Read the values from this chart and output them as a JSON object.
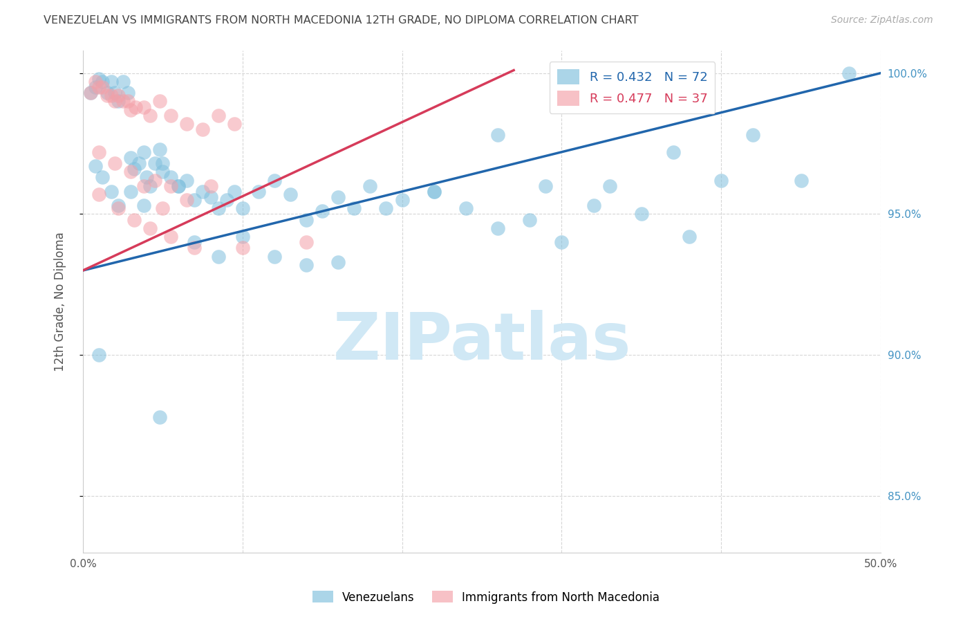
{
  "title": "VENEZUELAN VS IMMIGRANTS FROM NORTH MACEDONIA 12TH GRADE, NO DIPLOMA CORRELATION CHART",
  "source": "Source: ZipAtlas.com",
  "ylabel": "12th Grade, No Diploma",
  "x_min": 0.0,
  "x_max": 0.5,
  "y_min": 0.83,
  "y_max": 1.008,
  "x_ticks": [
    0.0,
    0.1,
    0.2,
    0.3,
    0.4,
    0.5
  ],
  "x_tick_labels": [
    "0.0%",
    "",
    "",
    "",
    "",
    "50.0%"
  ],
  "y_ticks": [
    0.85,
    0.9,
    0.95,
    1.0
  ],
  "y_tick_labels": [
    "85.0%",
    "90.0%",
    "95.0%",
    "100.0%"
  ],
  "blue_color": "#7fbfdd",
  "pink_color": "#f4a0a8",
  "blue_line_color": "#2166ac",
  "pink_line_color": "#d63b5a",
  "legend_blue_R": "0.432",
  "legend_blue_N": "72",
  "legend_pink_R": "0.477",
  "legend_pink_N": "37",
  "watermark": "ZIPatlas",
  "watermark_color": "#d0e8f5",
  "grid_color": "#cccccc",
  "title_color": "#444444",
  "axis_label_color": "#555555",
  "right_tick_color": "#4393c3",
  "blue_line_x0": 0.0,
  "blue_line_y0": 0.93,
  "blue_line_x1": 0.5,
  "blue_line_y1": 1.0,
  "pink_line_x0": 0.0,
  "pink_line_y0": 0.93,
  "pink_line_x1": 0.27,
  "pink_line_y1": 1.001,
  "venezuelan_x": [
    0.005,
    0.008,
    0.01,
    0.012,
    0.015,
    0.018,
    0.02,
    0.022,
    0.025,
    0.028,
    0.03,
    0.032,
    0.035,
    0.038,
    0.04,
    0.042,
    0.045,
    0.048,
    0.05,
    0.055,
    0.06,
    0.065,
    0.07,
    0.075,
    0.08,
    0.085,
    0.09,
    0.095,
    0.1,
    0.11,
    0.12,
    0.13,
    0.14,
    0.15,
    0.16,
    0.17,
    0.18,
    0.2,
    0.22,
    0.24,
    0.26,
    0.28,
    0.3,
    0.32,
    0.35,
    0.38,
    0.4,
    0.42,
    0.45,
    0.008,
    0.012,
    0.018,
    0.022,
    0.03,
    0.038,
    0.05,
    0.06,
    0.07,
    0.085,
    0.1,
    0.12,
    0.14,
    0.16,
    0.19,
    0.22,
    0.26,
    0.29,
    0.33,
    0.37,
    0.01,
    0.048,
    0.48
  ],
  "venezuelan_y": [
    0.993,
    0.995,
    0.998,
    0.997,
    0.993,
    0.997,
    0.993,
    0.99,
    0.997,
    0.993,
    0.97,
    0.966,
    0.968,
    0.972,
    0.963,
    0.96,
    0.968,
    0.973,
    0.965,
    0.963,
    0.96,
    0.962,
    0.955,
    0.958,
    0.956,
    0.952,
    0.955,
    0.958,
    0.952,
    0.958,
    0.962,
    0.957,
    0.948,
    0.951,
    0.956,
    0.952,
    0.96,
    0.955,
    0.958,
    0.952,
    0.945,
    0.948,
    0.94,
    0.953,
    0.95,
    0.942,
    0.962,
    0.978,
    0.962,
    0.967,
    0.963,
    0.958,
    0.953,
    0.958,
    0.953,
    0.968,
    0.96,
    0.94,
    0.935,
    0.942,
    0.935,
    0.932,
    0.933,
    0.952,
    0.958,
    0.978,
    0.96,
    0.96,
    0.972,
    0.9,
    0.878,
    1.0
  ],
  "macedonian_x": [
    0.005,
    0.008,
    0.01,
    0.012,
    0.015,
    0.018,
    0.02,
    0.022,
    0.025,
    0.028,
    0.03,
    0.033,
    0.038,
    0.042,
    0.048,
    0.055,
    0.065,
    0.075,
    0.085,
    0.095,
    0.01,
    0.02,
    0.03,
    0.038,
    0.045,
    0.055,
    0.065,
    0.08,
    0.01,
    0.022,
    0.032,
    0.042,
    0.055,
    0.07,
    0.14,
    0.05,
    0.1
  ],
  "macedonian_y": [
    0.993,
    0.997,
    0.995,
    0.995,
    0.992,
    0.992,
    0.99,
    0.992,
    0.99,
    0.99,
    0.987,
    0.988,
    0.988,
    0.985,
    0.99,
    0.985,
    0.982,
    0.98,
    0.985,
    0.982,
    0.972,
    0.968,
    0.965,
    0.96,
    0.962,
    0.96,
    0.955,
    0.96,
    0.957,
    0.952,
    0.948,
    0.945,
    0.942,
    0.938,
    0.94,
    0.952,
    0.938
  ]
}
